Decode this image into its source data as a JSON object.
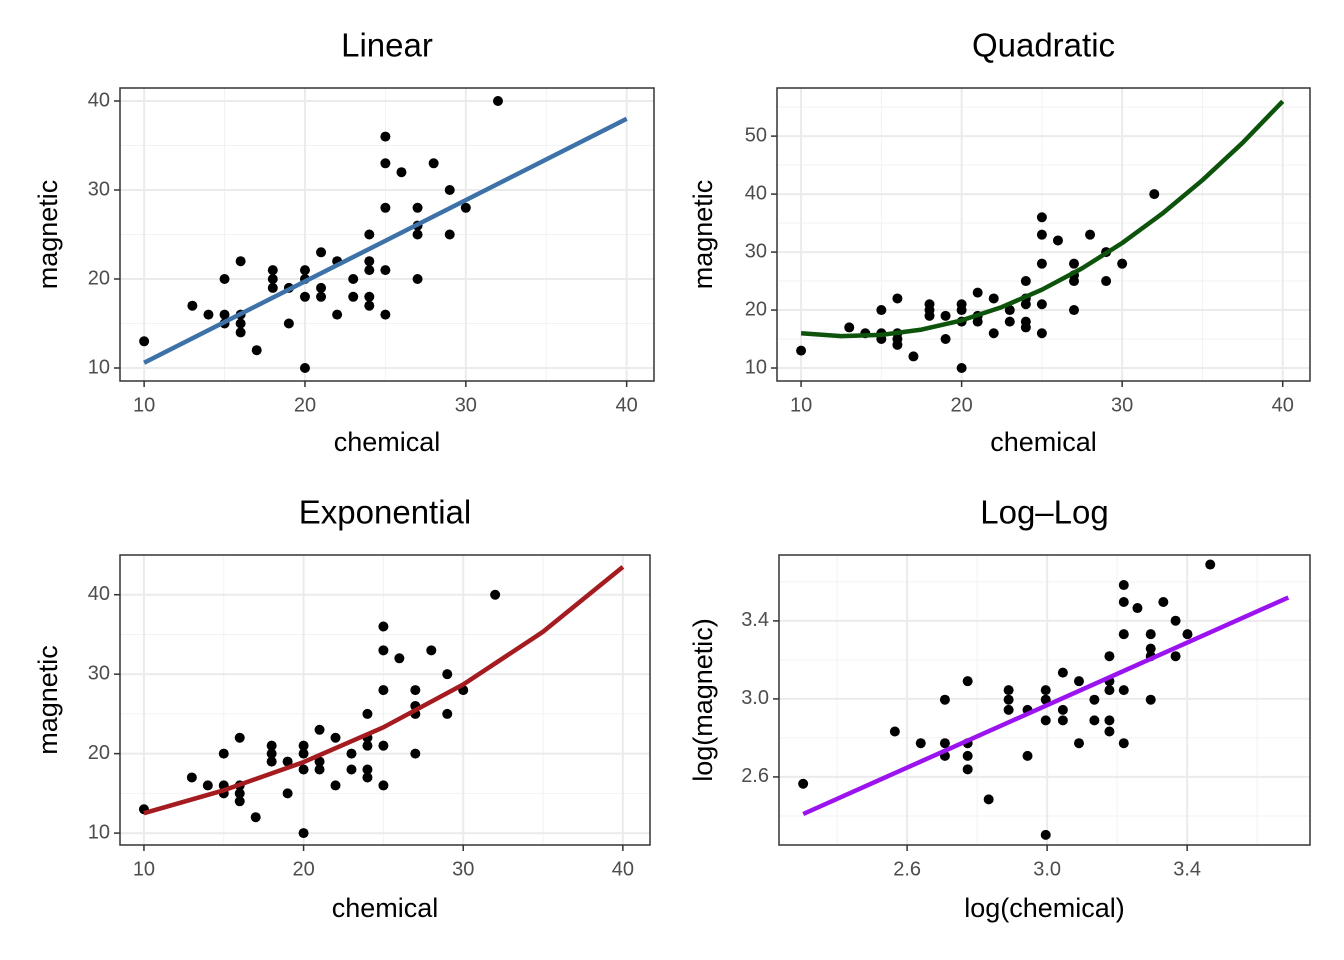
{
  "chart_data": [
    {
      "type": "scatter",
      "title": "Linear",
      "xlabel": "chemical",
      "ylabel": "magnetic",
      "xlim": [
        8.5,
        41.7
      ],
      "ylim": [
        8.54,
        41.46
      ],
      "xticks": [
        10,
        20,
        30,
        40
      ],
      "yticks": [
        10,
        20,
        30,
        40
      ],
      "grid": true,
      "points": {
        "color": "#000000",
        "x": [
          10,
          13,
          14,
          15,
          15,
          15,
          16,
          16,
          16,
          16,
          17,
          18,
          18,
          18,
          19,
          19,
          20,
          20,
          20,
          20,
          21,
          21,
          21,
          22,
          22,
          23,
          23,
          24,
          24,
          24,
          24,
          24,
          25,
          25,
          25,
          25,
          25,
          26,
          27,
          27,
          27,
          27,
          28,
          29,
          29,
          30,
          32
        ],
        "y": [
          13,
          17,
          16,
          16,
          15,
          20,
          16,
          15,
          14,
          22,
          12,
          21,
          20,
          19,
          15,
          19,
          21,
          20,
          18,
          10,
          23,
          19,
          18,
          22,
          16,
          20,
          18,
          25,
          22,
          21,
          18,
          17,
          36,
          33,
          28,
          21,
          16,
          32,
          28,
          26,
          25,
          20,
          33,
          30,
          25,
          28,
          40
        ]
      },
      "fit": {
        "color": "#3d72a8",
        "x": [
          10,
          40
        ],
        "y": [
          10.6,
          38.0
        ]
      }
    },
    {
      "type": "scatter",
      "title": "Quadratic",
      "xlabel": "chemical",
      "ylabel": "magnetic",
      "xlim": [
        8.5,
        41.7
      ],
      "ylim": [
        7.76,
        58.3
      ],
      "xticks": [
        10,
        20,
        30,
        40
      ],
      "yticks": [
        10,
        20,
        30,
        40,
        50
      ],
      "grid": true,
      "points": {
        "color": "#000000",
        "x": [
          10,
          13,
          14,
          15,
          15,
          15,
          16,
          16,
          16,
          16,
          17,
          18,
          18,
          18,
          19,
          19,
          20,
          20,
          20,
          20,
          21,
          21,
          21,
          22,
          22,
          23,
          23,
          24,
          24,
          24,
          24,
          24,
          25,
          25,
          25,
          25,
          25,
          26,
          27,
          27,
          27,
          27,
          28,
          29,
          29,
          30,
          32
        ],
        "y": [
          13,
          17,
          16,
          16,
          15,
          20,
          16,
          15,
          14,
          22,
          12,
          21,
          20,
          19,
          15,
          19,
          21,
          20,
          18,
          10,
          23,
          19,
          18,
          22,
          16,
          20,
          18,
          25,
          22,
          21,
          18,
          17,
          36,
          33,
          28,
          21,
          16,
          32,
          28,
          26,
          25,
          20,
          33,
          30,
          25,
          28,
          40
        ]
      },
      "fit": {
        "color": "#0d530b",
        "x": [
          10,
          12.5,
          15,
          17.5,
          20,
          22.5,
          25,
          27.5,
          30,
          32.5,
          35,
          37.5,
          40
        ],
        "y": [
          16,
          15.51,
          15.72,
          16.63,
          18.22,
          20.51,
          23.5,
          27.18,
          31.56,
          36.63,
          42.39,
          48.85,
          56
        ]
      }
    },
    {
      "type": "scatter",
      "title": "Exponential",
      "xlabel": "chemical",
      "ylabel": "magnetic",
      "xlim": [
        8.5,
        41.7
      ],
      "ylim": [
        8.5,
        45.0
      ],
      "xticks": [
        10,
        20,
        30,
        40
      ],
      "yticks": [
        10,
        20,
        30,
        40
      ],
      "grid": true,
      "points": {
        "color": "#000000",
        "x": [
          10,
          13,
          14,
          15,
          15,
          15,
          16,
          16,
          16,
          16,
          17,
          18,
          18,
          18,
          19,
          19,
          20,
          20,
          20,
          20,
          21,
          21,
          21,
          22,
          22,
          23,
          23,
          24,
          24,
          24,
          24,
          24,
          25,
          25,
          25,
          25,
          25,
          26,
          27,
          27,
          27,
          27,
          28,
          29,
          29,
          30,
          32
        ],
        "y": [
          13,
          17,
          16,
          16,
          15,
          20,
          16,
          15,
          14,
          22,
          12,
          21,
          20,
          19,
          15,
          19,
          21,
          20,
          18,
          10,
          23,
          19,
          18,
          22,
          16,
          20,
          18,
          25,
          22,
          21,
          18,
          17,
          36,
          33,
          28,
          21,
          16,
          32,
          28,
          26,
          25,
          20,
          33,
          30,
          25,
          28,
          40
        ]
      },
      "fit": {
        "color": "#a41b20",
        "x": [
          10,
          15,
          20,
          25,
          30,
          35,
          40
        ],
        "y": [
          12.5,
          15.39,
          18.94,
          23.32,
          28.7,
          35.33,
          43.5
        ]
      }
    },
    {
      "type": "scatter",
      "title": "Log–Log",
      "xlabel": "log(chemical)",
      "ylabel": "log(magnetic)",
      "xlim": [
        2.234,
        3.751
      ],
      "ylim": [
        2.251,
        3.738
      ],
      "xticks": [
        2.6,
        {
          "value": 3,
          "label": "3.0"
        },
        3.4
      ],
      "yticks": [
        2.6,
        {
          "value": 3,
          "label": "3.0"
        },
        3.4
      ],
      "grid": true,
      "points": {
        "color": "#000000",
        "x": [
          2.303,
          2.565,
          2.639,
          2.708,
          2.708,
          2.708,
          2.773,
          2.773,
          2.773,
          2.773,
          2.833,
          2.89,
          2.89,
          2.89,
          2.944,
          2.944,
          2.996,
          2.996,
          2.996,
          2.996,
          3.045,
          3.045,
          3.045,
          3.091,
          3.091,
          3.135,
          3.135,
          3.178,
          3.178,
          3.178,
          3.178,
          3.178,
          3.219,
          3.219,
          3.219,
          3.219,
          3.219,
          3.258,
          3.296,
          3.296,
          3.296,
          3.296,
          3.332,
          3.367,
          3.367,
          3.401,
          3.466
        ],
        "y": [
          2.565,
          2.833,
          2.773,
          2.773,
          2.708,
          2.996,
          2.773,
          2.708,
          2.639,
          3.091,
          2.485,
          3.045,
          2.996,
          2.944,
          2.708,
          2.944,
          3.045,
          2.996,
          2.89,
          2.303,
          3.135,
          2.944,
          2.89,
          3.091,
          2.773,
          2.996,
          2.89,
          3.219,
          3.091,
          3.045,
          2.89,
          2.833,
          3.584,
          3.497,
          3.332,
          3.045,
          2.773,
          3.466,
          3.332,
          3.258,
          3.219,
          2.996,
          3.497,
          3.401,
          3.219,
          3.332,
          3.689
        ]
      },
      "fit": {
        "color": "#9b14ef",
        "x": [
          2.303,
          3.689
        ],
        "y": [
          2.41,
          3.52
        ]
      }
    }
  ]
}
